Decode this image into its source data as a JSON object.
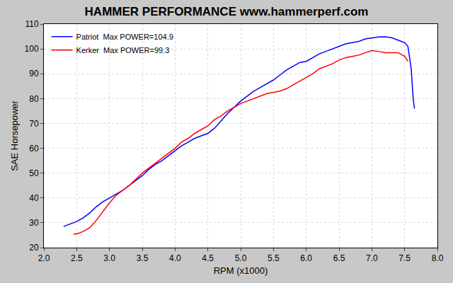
{
  "chart_data": {
    "type": "line",
    "title": "HAMMER PERFORMANCE www.hammerperf.com",
    "x_label": "RPM (x1000)",
    "y_label": "SAE Horsepower",
    "series": [
      {
        "name": "Patriot  Max POWER=104.9",
        "color": "#0000ff",
        "x": [
          2.3,
          2.4,
          2.5,
          2.6,
          2.7,
          2.8,
          2.9,
          3.0,
          3.1,
          3.2,
          3.3,
          3.4,
          3.5,
          3.6,
          3.7,
          3.8,
          3.9,
          4.0,
          4.1,
          4.2,
          4.3,
          4.4,
          4.5,
          4.6,
          4.7,
          4.8,
          4.9,
          5.0,
          5.1,
          5.2,
          5.3,
          5.4,
          5.5,
          5.6,
          5.7,
          5.8,
          5.9,
          6.0,
          6.1,
          6.2,
          6.3,
          6.4,
          6.5,
          6.6,
          6.7,
          6.8,
          6.9,
          7.0,
          7.1,
          7.2,
          7.3,
          7.4,
          7.5,
          7.55,
          7.6,
          7.63,
          7.65
        ],
        "values": [
          28.5,
          29.5,
          30.5,
          32,
          34,
          36.5,
          38.5,
          40,
          41.5,
          43,
          45,
          47,
          49,
          51.5,
          53.5,
          55,
          57,
          59,
          61,
          62.5,
          64,
          65,
          66,
          68,
          71,
          74,
          76.5,
          79,
          81,
          83,
          84.5,
          86,
          87.5,
          89.5,
          91.5,
          93,
          94.5,
          95,
          96.5,
          98,
          99,
          100,
          101,
          102,
          102.5,
          103,
          104,
          104.5,
          104.8,
          104.9,
          104.5,
          103.5,
          102.5,
          101,
          92,
          80,
          76
        ]
      },
      {
        "name": "Kerker  Max POWER=99.3",
        "color": "#ff0000",
        "x": [
          2.45,
          2.5,
          2.6,
          2.7,
          2.8,
          2.9,
          3.0,
          3.1,
          3.2,
          3.3,
          3.4,
          3.5,
          3.6,
          3.7,
          3.8,
          3.9,
          4.0,
          4.1,
          4.2,
          4.3,
          4.4,
          4.5,
          4.6,
          4.7,
          4.8,
          4.9,
          5.0,
          5.1,
          5.2,
          5.3,
          5.4,
          5.5,
          5.6,
          5.7,
          5.8,
          5.9,
          6.0,
          6.1,
          6.2,
          6.3,
          6.4,
          6.5,
          6.6,
          6.7,
          6.8,
          6.9,
          7.0,
          7.1,
          7.2,
          7.3,
          7.4,
          7.5,
          7.55
        ],
        "values": [
          25.5,
          25.5,
          26.5,
          28,
          31,
          34.5,
          38,
          41,
          43,
          45,
          47.5,
          50,
          52,
          54,
          56,
          58,
          60,
          62.5,
          64,
          66,
          67.5,
          69,
          71.5,
          73,
          75,
          76.5,
          78,
          79,
          80,
          81,
          82,
          82.5,
          83,
          84,
          85.5,
          87,
          88.5,
          90,
          92,
          93,
          94,
          95.5,
          96.5,
          97,
          97.5,
          98.5,
          99.3,
          99,
          98.5,
          98.5,
          98.5,
          97,
          95
        ]
      }
    ],
    "xlim": [
      2.0,
      8.0
    ],
    "xticks": [
      {
        "value": 2.0,
        "label": "2.0"
      },
      2.5,
      {
        "value": 3.0,
        "label": "3.0"
      },
      3.5,
      {
        "value": 4.0,
        "label": "4.0"
      },
      4.5,
      {
        "value": 5.0,
        "label": "5.0"
      },
      5.5,
      {
        "value": 6.0,
        "label": "6.0"
      },
      6.5,
      {
        "value": 7.0,
        "label": "7.0"
      },
      7.5,
      {
        "value": 8.0,
        "label": "8.0"
      }
    ],
    "ylim": [
      20,
      110
    ],
    "yticks": [
      20,
      30,
      40,
      50,
      60,
      70,
      80,
      90,
      100,
      110
    ],
    "grid": true,
    "legend": "top left"
  }
}
